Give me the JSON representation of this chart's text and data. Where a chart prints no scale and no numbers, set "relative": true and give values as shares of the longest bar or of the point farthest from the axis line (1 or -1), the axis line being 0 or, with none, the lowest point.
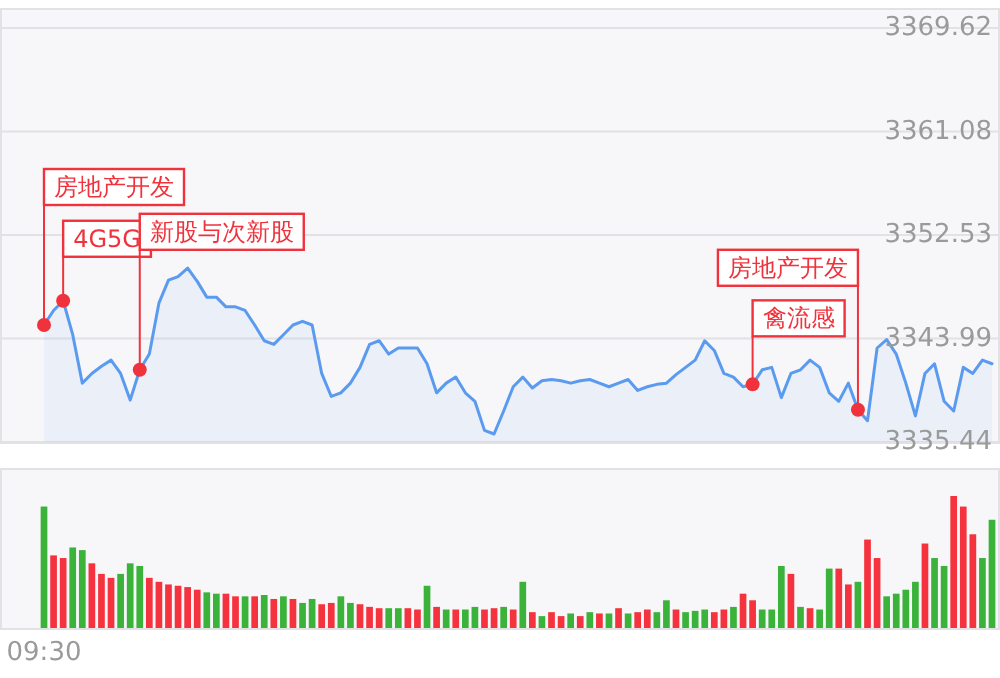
{
  "chart_data": [
    {
      "type": "area",
      "tick_labels": "y",
      "grid": "y",
      "marker": "none",
      "ylim": [
        3335.44,
        3369.62
      ],
      "yticks": [
        3335.44,
        3343.99,
        3352.53,
        3361.08,
        3369.62
      ],
      "categories": [
        null,
        null,
        null,
        null,
        null,
        null,
        null,
        null,
        null,
        null,
        null,
        null,
        null,
        null,
        null,
        null,
        null,
        null,
        null,
        null,
        null,
        null,
        null,
        null,
        null,
        null,
        null,
        null,
        null,
        null,
        null,
        null,
        null,
        null,
        null,
        null,
        null,
        null,
        null,
        null,
        null,
        null,
        null,
        null,
        null,
        null,
        null,
        null,
        null,
        null,
        null,
        null,
        null,
        null,
        null,
        null,
        null,
        null,
        null,
        null,
        null,
        null,
        null,
        null,
        null,
        null,
        null,
        null,
        null,
        null,
        null,
        null,
        null,
        null,
        null,
        null,
        null,
        null,
        null,
        null,
        null,
        null,
        null,
        null,
        null,
        null,
        null,
        null,
        null,
        null,
        null,
        null,
        null,
        null,
        null,
        null,
        null,
        null,
        null,
        null
      ],
      "series": [
        {
          "color": "#5b9bef",
          "values": [
            3345.1,
            3346.3,
            3347.1,
            3344.3,
            3340.3,
            3341.1,
            3341.7,
            3342.2,
            3341.1,
            3338.9,
            3341.4,
            3342.7,
            3346.9,
            3348.8,
            3349.1,
            3349.8,
            3348.7,
            3347.4,
            3347.4,
            3346.6,
            3346.6,
            3346.3,
            3345.1,
            3343.8,
            3343.5,
            3344.3,
            3345.1,
            3345.4,
            3345.1,
            3341.1,
            3339.2,
            3339.5,
            3340.3,
            3341.6,
            3343.5,
            3343.8,
            3342.7,
            3343.2,
            3343.2,
            3343.2,
            3341.9,
            3339.5,
            3340.3,
            3340.8,
            3339.5,
            3338.8,
            3336.4,
            3336.1,
            3338.0,
            3340.0,
            3340.8,
            3339.9,
            3340.5,
            3340.6,
            3340.5,
            3340.3,
            3340.5,
            3340.6,
            3340.3,
            3340.0,
            3340.3,
            3340.6,
            3339.7,
            3340.0,
            3340.2,
            3340.3,
            3341.0,
            3341.6,
            3342.2,
            3343.8,
            3343.0,
            3341.1,
            3340.8,
            3340.0,
            3340.2,
            3341.4,
            3341.6,
            3339.1,
            3341.1,
            3341.4,
            3342.2,
            3341.6,
            3339.5,
            3338.8,
            3340.3,
            3338.1,
            3337.2,
            3343.2,
            3343.9,
            3342.7,
            3340.3,
            3337.6,
            3341.1,
            3341.9,
            3338.8,
            3338.0,
            3341.6,
            3341.1,
            3342.2,
            3341.9
          ]
        },
        {
          "type": "scatter",
          "marker": "circle",
          "color": "#f0323c",
          "values": [
            3345.1,
            null,
            3347.1,
            null,
            null,
            null,
            null,
            null,
            null,
            null,
            3341.4,
            null,
            null,
            null,
            null,
            null,
            null,
            null,
            null,
            null,
            null,
            null,
            null,
            null,
            null,
            null,
            null,
            null,
            null,
            null,
            null,
            null,
            null,
            null,
            null,
            null,
            null,
            null,
            null,
            null,
            null,
            null,
            null,
            null,
            null,
            null,
            null,
            null,
            null,
            null,
            null,
            null,
            null,
            null,
            null,
            null,
            null,
            null,
            null,
            null,
            null,
            null,
            null,
            null,
            null,
            null,
            null,
            null,
            null,
            null,
            null,
            null,
            null,
            null,
            3340.2,
            null,
            null,
            null,
            null,
            null,
            null,
            null,
            null,
            null,
            null,
            3338.1,
            null,
            null,
            null,
            null,
            null,
            null,
            null,
            null,
            null,
            null,
            null,
            null,
            null,
            null
          ]
        }
      ],
      "annotations": [
        "房地产开发",
        "4G5G",
        "新股与次新股",
        "禽流感",
        "房地产开发"
      ]
    },
    {
      "type": "bar",
      "relative": true,
      "tick_labels": "x",
      "categories": [
        "09:30",
        null,
        null,
        null,
        null,
        null,
        null,
        null,
        null,
        null,
        null,
        null,
        null,
        null,
        null,
        null,
        null,
        null,
        null,
        null,
        null,
        null,
        null,
        null,
        null,
        null,
        null,
        null,
        null,
        null,
        null,
        null,
        null,
        null,
        null,
        null,
        null,
        null,
        null,
        null,
        null,
        null,
        null,
        null,
        null,
        null,
        null,
        null,
        null,
        null,
        null,
        null,
        null,
        null,
        null,
        null,
        null,
        null,
        null,
        null,
        null,
        null,
        null,
        null,
        null,
        null,
        null,
        null,
        null,
        null,
        null,
        null,
        null,
        null,
        null,
        null,
        null,
        null,
        null,
        null,
        null,
        null,
        null,
        null,
        null,
        null,
        null,
        null,
        null,
        null,
        null,
        null,
        null,
        null,
        null,
        null,
        null,
        null,
        null,
        null
      ],
      "values": [
        0.92,
        0.55,
        0.53,
        0.61,
        0.59,
        0.49,
        0.41,
        0.38,
        0.41,
        0.49,
        0.47,
        0.38,
        0.35,
        0.33,
        0.32,
        0.31,
        0.29,
        0.27,
        0.26,
        0.26,
        0.24,
        0.24,
        0.24,
        0.25,
        0.22,
        0.24,
        0.22,
        0.19,
        0.22,
        0.18,
        0.19,
        0.24,
        0.19,
        0.18,
        0.16,
        0.15,
        0.15,
        0.15,
        0.15,
        0.14,
        0.32,
        0.16,
        0.14,
        0.14,
        0.14,
        0.16,
        0.14,
        0.15,
        0.16,
        0.14,
        0.35,
        0.12,
        0.09,
        0.12,
        0.09,
        0.11,
        0.09,
        0.12,
        0.11,
        0.11,
        0.15,
        0.11,
        0.12,
        0.14,
        0.12,
        0.21,
        0.14,
        0.12,
        0.13,
        0.14,
        0.12,
        0.14,
        0.16,
        0.26,
        0.21,
        0.14,
        0.14,
        0.47,
        0.41,
        0.16,
        0.15,
        0.14,
        0.45,
        0.45,
        0.33,
        0.35,
        0.67,
        0.53,
        0.24,
        0.26,
        0.29,
        0.35,
        0.64,
        0.53,
        0.47,
        1,
        0.92,
        0.71,
        0.53,
        0.82
      ],
      "colors": [
        "#3bb33b",
        "#f5333f",
        "#f5333f",
        "#3bb33b",
        "#3bb33b",
        "#f5333f",
        "#f5333f",
        "#f5333f",
        "#3bb33b",
        "#3bb33b",
        "#3bb33b",
        "#f5333f",
        "#f5333f",
        "#f5333f",
        "#f5333f",
        "#f5333f",
        "#f5333f",
        "#3bb33b",
        "#3bb33b",
        "#f5333f",
        "#f5333f",
        "#3bb33b",
        "#f5333f",
        "#3bb33b",
        "#f5333f",
        "#3bb33b",
        "#f5333f",
        "#3bb33b",
        "#3bb33b",
        "#f5333f",
        "#f5333f",
        "#3bb33b",
        "#3bb33b",
        "#f5333f",
        "#f5333f",
        "#f5333f",
        "#3bb33b",
        "#3bb33b",
        "#f5333f",
        "#f5333f",
        "#3bb33b",
        "#f5333f",
        "#3bb33b",
        "#f5333f",
        "#3bb33b",
        "#3bb33b",
        "#f5333f",
        "#f5333f",
        "#3bb33b",
        "#f5333f",
        "#3bb33b",
        "#f5333f",
        "#3bb33b",
        "#f5333f",
        "#f5333f",
        "#3bb33b",
        "#f5333f",
        "#3bb33b",
        "#f5333f",
        "#3bb33b",
        "#f5333f",
        "#3bb33b",
        "#f5333f",
        "#f5333f",
        "#3bb33b",
        "#3bb33b",
        "#f5333f",
        "#3bb33b",
        "#3bb33b",
        "#3bb33b",
        "#f5333f",
        "#f5333f",
        "#3bb33b",
        "#f5333f",
        "#f5333f",
        "#3bb33b",
        "#3bb33b",
        "#3bb33b",
        "#f5333f",
        "#3bb33b",
        "#f5333f",
        "#3bb33b",
        "#3bb33b",
        "#f5333f",
        "#f5333f",
        "#3bb33b",
        "#f5333f",
        "#f5333f",
        "#3bb33b",
        "#3bb33b",
        "#3bb33b",
        "#3bb33b",
        "#f5333f",
        "#3bb33b",
        "#3bb33b",
        "#f5333f",
        "#f5333f",
        "#f5333f",
        "#3bb33b",
        "#3bb33b"
      ]
    }
  ]
}
